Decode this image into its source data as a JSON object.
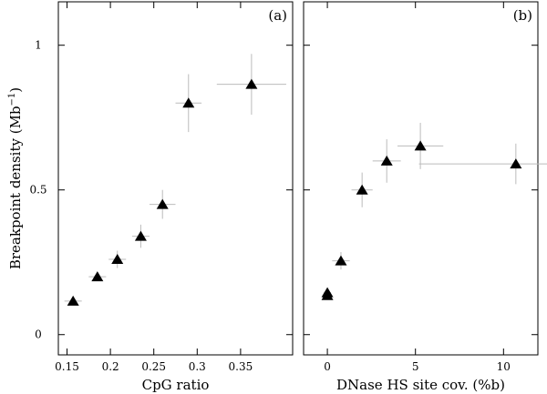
{
  "chart_data": [
    {
      "type": "scatter",
      "panel_label": "(a)",
      "xlabel": "CpG ratio",
      "ylabel": "Breakpoint density (Mb",
      "ylabel_sup": "−1",
      "ylabel_end": ")",
      "color": "#000000",
      "errcolor": "#bbbbbb",
      "x": [
        0.157,
        0.185,
        0.208,
        0.235,
        0.26,
        0.29,
        0.3626
      ],
      "y": [
        0.116,
        0.2,
        0.26,
        0.34,
        0.45,
        0.8,
        0.865
      ],
      "xerr": [
        0.01,
        0.01,
        0.01,
        0.01,
        0.015,
        0.015,
        0.04
      ],
      "yerr": [
        0.012,
        0.015,
        0.03,
        0.04,
        0.05,
        0.1,
        0.105
      ],
      "xlim": [
        0.14,
        0.41
      ],
      "xticks": [
        0.15,
        0.2,
        0.25,
        0.3,
        0.35
      ],
      "ylim": [
        -0.07,
        1.15
      ],
      "yticks": [
        0,
        0.5,
        1
      ]
    },
    {
      "type": "scatter",
      "panel_label": "(b)",
      "xlabel": "DNase HS site cov. (%b)",
      "color": "#000000",
      "errcolor": "#bbbbbb",
      "x": [
        0,
        0,
        0.77,
        1.97,
        3.37,
        5.28,
        10.7
      ],
      "y": [
        0.145,
        0.135,
        0.255,
        0.5,
        0.6,
        0.652,
        0.59
      ],
      "xerr": [
        0.2,
        0.2,
        0.5,
        0.6,
        0.8,
        1.3,
        5.5
      ],
      "yerr": [
        0.015,
        0.012,
        0.03,
        0.06,
        0.075,
        0.08,
        0.07
      ],
      "xlim": [
        -1.35,
        11.95
      ],
      "xticks": [
        0,
        5,
        10
      ],
      "ylim": [
        -0.07,
        1.15
      ]
    }
  ]
}
